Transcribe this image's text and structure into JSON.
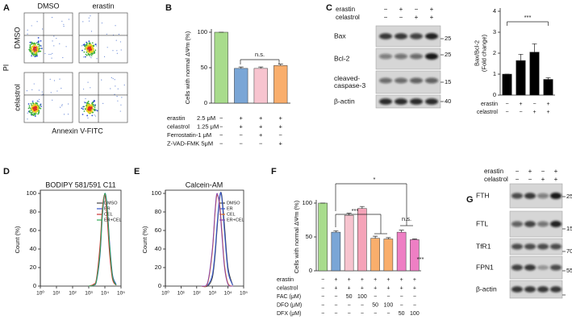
{
  "figure": {
    "panel_letters": [
      "A",
      "B",
      "C",
      "D",
      "E",
      "F",
      "G"
    ],
    "panel_a": {
      "columns": [
        "DMSO",
        "erastin"
      ],
      "rows": [
        "DMSO",
        "celastrol"
      ],
      "y_axis_label": "PI",
      "x_axis_label": "Annexin V-FITC"
    },
    "blot_c": {
      "treatments": [
        {
          "name": "erastin",
          "signs": [
            "−",
            "+",
            "−",
            "+"
          ]
        },
        {
          "name": "celastrol",
          "signs": [
            "−",
            "−",
            "+",
            "+"
          ]
        }
      ],
      "bands": [
        [
          "Bax"
        ],
        [
          "Bcl-2"
        ],
        [
          "cleaved-",
          "caspase-3"
        ],
        [
          "β-actin"
        ]
      ],
      "mw_markers": [
        25,
        25,
        15,
        40
      ]
    },
    "blot_g": {
      "treatments": [
        {
          "name": "erastin",
          "signs": [
            "−",
            "+",
            "−",
            "+"
          ]
        },
        {
          "name": "celastrol",
          "signs": [
            "−",
            "−",
            "+",
            "+"
          ]
        }
      ],
      "bands": [
        [
          "FTH"
        ],
        [
          "FTL"
        ],
        [
          "TfR1"
        ],
        [
          "FPN1"
        ],
        [
          "β-actin"
        ]
      ],
      "mw_markers": [
        25,
        15,
        70,
        55
      ]
    }
  },
  "chart_data": [
    {
      "type": "bar",
      "y_label": [
        "Cells with normal ΔΨm (%)"
      ],
      "values": [
        100,
        49,
        49,
        53
      ],
      "colors": [
        "#a8dc8c",
        "#7aa6d6",
        "#f7c4cf",
        "#f9ae6c"
      ],
      "errors": [
        0,
        2,
        2,
        2
      ],
      "ylim": [
        0,
        100
      ],
      "yticks": [
        0,
        50,
        100
      ],
      "treatments": [
        {
          "name": "erastin",
          "dose": "2.5 μM",
          "signs": [
            "−",
            "+",
            "+",
            "+"
          ]
        },
        {
          "name": "celastrol",
          "dose": "1.25 μM",
          "signs": [
            "−",
            "+",
            "+",
            "+"
          ]
        },
        {
          "name": "Ferrostatin-1 μM",
          "signs": [
            "−",
            "−",
            "+",
            "−"
          ]
        },
        {
          "name": "Z-VAD-FMK 5μM",
          "signs": [
            "−",
            "−",
            "−",
            "+"
          ]
        }
      ],
      "annotations": [
        "n.s."
      ]
    },
    {
      "type": "bar",
      "y_label": [
        "Bax/Bcl-2",
        "(Fold change)"
      ],
      "values": [
        1,
        1.65,
        2.05,
        0.75
      ],
      "colors": [
        "#000000",
        "#000000",
        "#000000",
        "#000000"
      ],
      "errors": [
        0,
        0.3,
        0.4,
        0.08
      ],
      "ylim": [
        0,
        4
      ],
      "yticks": [
        0,
        1,
        2,
        3,
        4
      ],
      "treatments": [
        {
          "name": "erastin",
          "signs": [
            "−",
            "+",
            "−",
            "+"
          ]
        },
        {
          "name": "celastrol",
          "signs": [
            "−",
            "−",
            "+",
            "+"
          ]
        }
      ],
      "annotations": [
        "***"
      ]
    },
    {
      "type": "line",
      "title": "BODIPY 581/591 C11",
      "y_label": [
        "Count (%)"
      ],
      "xscale": "log",
      "legend_position": "upper right",
      "x": [
        1000,
        2000,
        3000,
        5000,
        7000,
        10000,
        14000,
        20000,
        30000,
        50000
      ],
      "series": [
        {
          "name": "DMSO",
          "color": "#444444",
          "values": [
            0,
            1,
            6,
            39,
            79,
            100,
            79,
            39,
            9,
            1
          ]
        },
        {
          "name": "ER",
          "color": "#3355cc",
          "values": [
            0,
            1,
            5,
            33,
            75,
            100,
            85,
            45,
            12,
            2
          ]
        },
        {
          "name": "CEL",
          "color": "#cc3333",
          "values": [
            0,
            2,
            8,
            44,
            84,
            98,
            72,
            33,
            7,
            1
          ]
        },
        {
          "name": "ER+CEL",
          "color": "#33aa55",
          "values": [
            0,
            1,
            6,
            36,
            78,
            100,
            82,
            42,
            10,
            1
          ]
        }
      ],
      "xlim": [
        1,
        100000
      ],
      "xticks": [
        {
          "value": 1,
          "label": "10⁰"
        },
        {
          "value": 10,
          "label": "10¹"
        },
        {
          "value": 100,
          "label": "10²"
        },
        {
          "value": 1000,
          "label": "10³"
        },
        {
          "value": 10000,
          "label": "10⁴"
        },
        {
          "value": 100000,
          "label": "10⁵"
        }
      ],
      "ylim": [
        0,
        100
      ],
      "yticks": [
        0,
        20,
        40,
        60,
        80,
        100
      ]
    },
    {
      "type": "line",
      "title": "Calcein-AM",
      "y_label": [
        "Count (%)"
      ],
      "xscale": "log",
      "legend_position": "upper right",
      "x": [
        200,
        500,
        1000,
        1500,
        2000,
        3000,
        4000,
        6000,
        10000,
        20000
      ],
      "series": [
        {
          "name": "DMSO",
          "color": "#444444",
          "values": [
            0,
            0,
            9,
            33,
            61,
            96,
            98,
            65,
            20,
            1
          ]
        },
        {
          "name": "ER",
          "color": "#3355cc",
          "values": [
            0,
            1,
            12,
            38,
            66,
            98,
            95,
            58,
            16,
            1
          ]
        },
        {
          "name": "CEL",
          "color": "#e07020",
          "values": [
            0,
            3,
            37,
            79,
            98,
            87,
            61,
            23,
            3,
            0
          ]
        },
        {
          "name": "ER+CEL",
          "color": "#8844aa",
          "values": [
            0,
            4,
            40,
            82,
            100,
            84,
            57,
            20,
            2,
            0
          ]
        }
      ],
      "xlim": [
        1,
        100000
      ],
      "xticks": [
        {
          "value": 1,
          "label": "10⁰"
        },
        {
          "value": 10,
          "label": "10¹"
        },
        {
          "value": 100,
          "label": "10²"
        },
        {
          "value": 1000,
          "label": "10³"
        },
        {
          "value": 10000,
          "label": "10⁴"
        },
        {
          "value": 100000,
          "label": "10⁵"
        }
      ],
      "ylim": [
        0,
        100
      ],
      "yticks": [
        0,
        20,
        40,
        60,
        80,
        100
      ]
    },
    {
      "type": "bar",
      "y_label": [
        "Cells with normal ΔΨm (%)"
      ],
      "values": [
        100,
        57,
        82,
        92,
        48,
        47,
        57,
        46
      ],
      "colors": [
        "#a8dc8c",
        "#7aa6d6",
        "#f7c4cf",
        "#f5a3b8",
        "#f9ae6c",
        "#f9ae6c",
        "#ee7fc4",
        "#ee7fc4"
      ],
      "errors": [
        0,
        2,
        3,
        3,
        3,
        2,
        3,
        1
      ],
      "ylim": [
        0,
        100
      ],
      "yticks": [
        0,
        50,
        100
      ],
      "treatments": [
        {
          "name": "erastin",
          "signs": [
            "−",
            "+",
            "+",
            "+",
            "+",
            "+",
            "+",
            "+"
          ]
        },
        {
          "name": "celastrol",
          "signs": [
            "−",
            "+",
            "+",
            "+",
            "+",
            "+",
            "+",
            "+"
          ]
        },
        {
          "name": "FAC (μM)",
          "signs": [
            "−",
            "−",
            "50",
            "100",
            "−",
            "−",
            "−",
            "−"
          ]
        },
        {
          "name": "DFO (μM)",
          "signs": [
            "−",
            "−",
            "−",
            "−",
            "50",
            "100",
            "−",
            "−"
          ]
        },
        {
          "name": "DFX (μM)",
          "signs": [
            "−",
            "−",
            "−",
            "−",
            "−",
            "−",
            "50",
            "100"
          ]
        }
      ],
      "annotations": [
        "***",
        "*",
        "n.s.",
        "***"
      ]
    }
  ]
}
